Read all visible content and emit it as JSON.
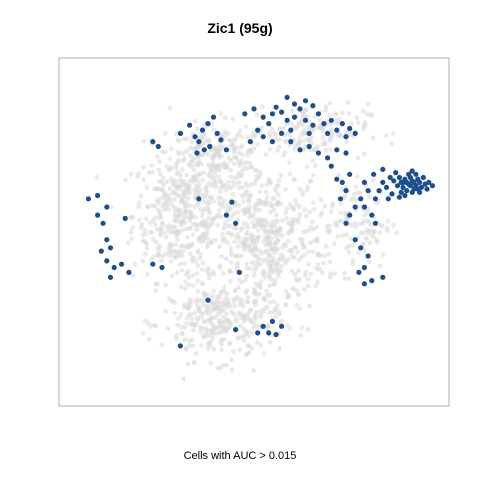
{
  "chart_data": {
    "type": "scatter",
    "title": "Zic1 (95g)",
    "xlabel": "Cells with AUC > 0.015",
    "ylabel": "",
    "axes_visible": false,
    "grid": false,
    "legend": "none",
    "colors": {
      "background_cells": "#d9d9d9",
      "positive_cells": "#1f4e8c",
      "frame": "#b0b0b0"
    },
    "series": [
      {
        "name": "",
        "color": "#d9d9d9",
        "clusters": [
          {
            "cx": -0.4,
            "cy": 0.1,
            "sx": 0.13,
            "sy": 0.2,
            "n": 380
          },
          {
            "cx": -0.2,
            "cy": 0.45,
            "sx": 0.14,
            "sy": 0.1,
            "n": 200
          },
          {
            "cx": 0.05,
            "cy": -0.05,
            "sx": 0.17,
            "sy": 0.22,
            "n": 520
          },
          {
            "cx": -0.18,
            "cy": -0.55,
            "sx": 0.16,
            "sy": 0.12,
            "n": 300
          },
          {
            "cx": 0.3,
            "cy": 0.62,
            "sx": 0.16,
            "sy": 0.08,
            "n": 160
          },
          {
            "cx": 0.55,
            "cy": 0.05,
            "sx": 0.1,
            "sy": 0.14,
            "n": 110
          }
        ]
      },
      {
        "name": "",
        "color": "#1f4e8c",
        "points": [
          [
            0.8,
            0.3
          ],
          [
            0.82,
            0.32
          ],
          [
            0.84,
            0.29
          ],
          [
            0.86,
            0.31
          ],
          [
            0.88,
            0.28
          ],
          [
            0.9,
            0.3
          ],
          [
            0.81,
            0.27
          ],
          [
            0.83,
            0.25
          ],
          [
            0.85,
            0.33
          ],
          [
            0.87,
            0.26
          ],
          [
            0.89,
            0.32
          ],
          [
            0.91,
            0.27
          ],
          [
            0.93,
            0.29
          ],
          [
            0.79,
            0.33
          ],
          [
            0.84,
            0.35
          ],
          [
            0.88,
            0.35
          ],
          [
            0.92,
            0.33
          ],
          [
            0.86,
            0.24
          ],
          [
            0.82,
            0.22
          ],
          [
            0.78,
            0.28
          ],
          [
            0.95,
            0.3
          ],
          [
            0.8,
            0.24
          ],
          [
            0.9,
            0.24
          ],
          [
            0.76,
            0.31
          ],
          [
            0.74,
            0.33
          ],
          [
            0.72,
            0.27
          ],
          [
            0.77,
            0.36
          ],
          [
            0.86,
            0.37
          ],
          [
            0.83,
            0.3
          ],
          [
            0.87,
            0.3
          ],
          [
            0.85,
            0.28
          ],
          [
            0.81,
            0.3
          ],
          [
            0.89,
            0.26
          ],
          [
            0.94,
            0.26
          ],
          [
            0.97,
            0.28
          ],
          [
            0.79,
            0.21
          ],
          [
            0.7,
            0.3
          ],
          [
            0.68,
            0.25
          ],
          [
            0.75,
            0.23
          ],
          [
            0.73,
            0.2
          ],
          [
            0.66,
            0.2
          ],
          [
            0.62,
            0.25
          ],
          [
            0.6,
            0.3
          ],
          [
            0.65,
            0.35
          ],
          [
            0.7,
            0.38
          ],
          [
            0.58,
            0.2
          ],
          [
            0.55,
            0.15
          ],
          [
            0.52,
            0.35
          ],
          [
            0.5,
            0.25
          ],
          [
            0.48,
            0.3
          ],
          [
            0.45,
            0.32
          ],
          [
            0.47,
            0.2
          ],
          [
            0.42,
            0.4
          ],
          [
            0.6,
            0.15
          ],
          [
            0.64,
            0.1
          ],
          [
            0.66,
            0.05
          ],
          [
            0.55,
            -0.05
          ],
          [
            0.58,
            -0.1
          ],
          [
            0.62,
            -0.15
          ],
          [
            0.6,
            -0.22
          ],
          [
            0.57,
            -0.25
          ],
          [
            0.64,
            -0.3
          ],
          [
            0.6,
            -0.32
          ],
          [
            0.7,
            -0.28
          ],
          [
            0.52,
            0.1
          ],
          [
            0.5,
            0.05
          ],
          [
            -0.55,
            0.55
          ],
          [
            -0.52,
            0.52
          ],
          [
            -0.4,
            0.6
          ],
          [
            -0.35,
            0.65
          ],
          [
            -0.32,
            0.58
          ],
          [
            -0.3,
            0.55
          ],
          [
            -0.28,
            0.62
          ],
          [
            -0.25,
            0.66
          ],
          [
            -0.22,
            0.7
          ],
          [
            -0.2,
            0.6
          ],
          [
            -0.18,
            0.56
          ],
          [
            -0.27,
            0.5
          ],
          [
            -0.31,
            0.48
          ],
          [
            -0.24,
            0.52
          ],
          [
            -0.15,
            0.5
          ],
          [
            -0.05,
            0.72
          ],
          [
            0.0,
            0.75
          ],
          [
            0.05,
            0.7
          ],
          [
            0.08,
            0.66
          ],
          [
            0.1,
            0.72
          ],
          [
            0.12,
            0.76
          ],
          [
            0.15,
            0.73
          ],
          [
            0.18,
            0.68
          ],
          [
            0.2,
            0.62
          ],
          [
            0.22,
            0.7
          ],
          [
            0.25,
            0.75
          ],
          [
            0.28,
            0.68
          ],
          [
            0.3,
            0.6
          ],
          [
            0.32,
            0.65
          ],
          [
            0.35,
            0.72
          ],
          [
            0.38,
            0.66
          ],
          [
            0.4,
            0.6
          ],
          [
            0.42,
            0.68
          ],
          [
            0.45,
            0.62
          ],
          [
            0.48,
            0.66
          ],
          [
            0.5,
            0.58
          ],
          [
            0.52,
            0.63
          ],
          [
            0.55,
            0.6
          ],
          [
            0.3,
            0.52
          ],
          [
            0.25,
            0.5
          ],
          [
            0.35,
            0.48
          ],
          [
            0.4,
            0.45
          ],
          [
            0.45,
            0.5
          ],
          [
            0.5,
            0.48
          ],
          [
            0.2,
            0.55
          ],
          [
            0.15,
            0.6
          ],
          [
            0.1,
            0.55
          ],
          [
            0.05,
            0.58
          ],
          [
            0.02,
            0.62
          ],
          [
            -0.02,
            0.55
          ],
          [
            0.22,
            0.78
          ],
          [
            0.28,
            0.8
          ],
          [
            0.18,
            0.82
          ],
          [
            0.32,
            0.77
          ],
          [
            -0.9,
            0.2
          ],
          [
            -0.85,
            0.1
          ],
          [
            -0.82,
            0.05
          ],
          [
            -0.8,
            -0.05
          ],
          [
            -0.78,
            -0.1
          ],
          [
            -0.83,
            -0.12
          ],
          [
            -0.8,
            -0.18
          ],
          [
            -0.76,
            -0.22
          ],
          [
            -0.78,
            -0.28
          ],
          [
            -0.72,
            -0.2
          ],
          [
            -0.68,
            -0.25
          ],
          [
            -0.8,
            0.15
          ],
          [
            -0.7,
            0.08
          ],
          [
            -0.55,
            -0.2
          ],
          [
            -0.5,
            -0.22
          ],
          [
            -0.85,
            0.22
          ],
          [
            -0.15,
            0.1
          ],
          [
            -0.1,
            0.05
          ],
          [
            -0.12,
            0.18
          ],
          [
            -0.3,
            0.2
          ],
          [
            -0.08,
            -0.25
          ],
          [
            -0.25,
            -0.42
          ],
          [
            -0.1,
            -0.6
          ],
          [
            0.02,
            -0.62
          ],
          [
            0.05,
            -0.58
          ],
          [
            0.08,
            -0.62
          ],
          [
            0.12,
            -0.63
          ],
          [
            0.15,
            -0.58
          ],
          [
            0.1,
            -0.55
          ],
          [
            -0.4,
            -0.7
          ]
        ]
      }
    ]
  },
  "title": "Zic1 (95g)",
  "caption": "Cells with AUC > 0.015"
}
